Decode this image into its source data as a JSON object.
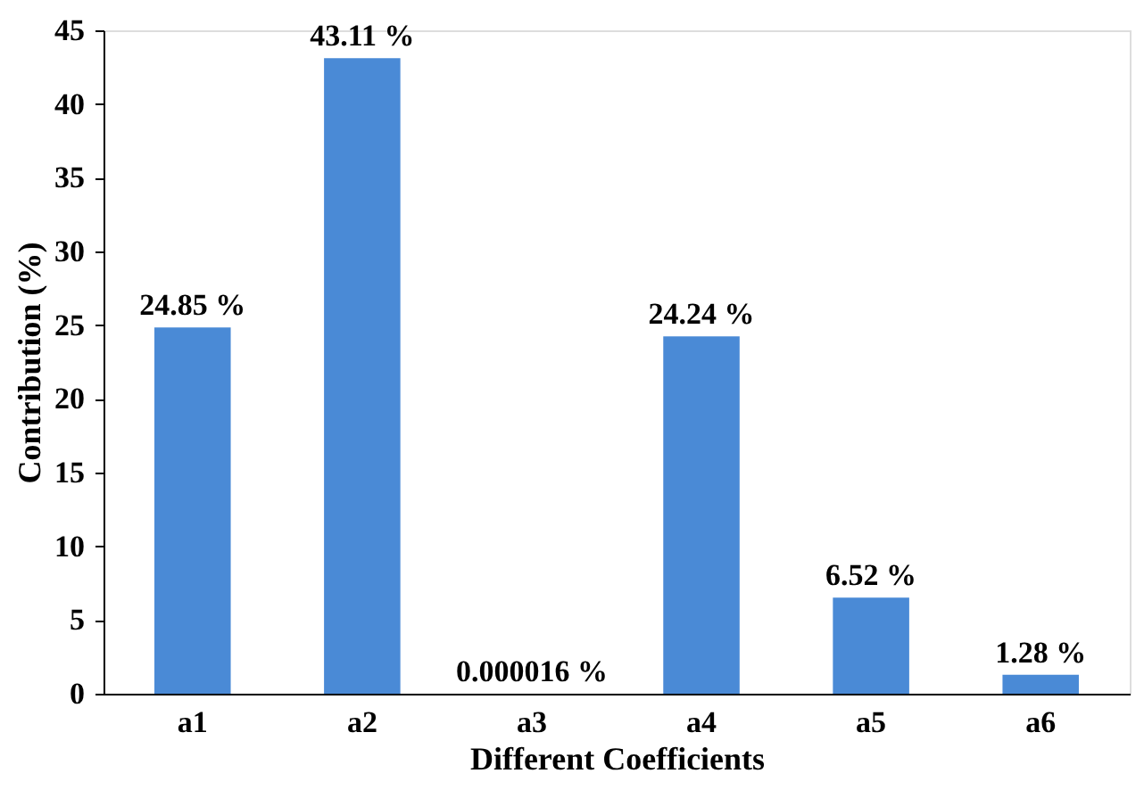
{
  "chart_data": {
    "type": "bar",
    "xlabel": "Different Coefficients",
    "ylabel": "Contribution (%)",
    "categories": [
      "a1",
      "a2",
      "a3",
      "a4",
      "a5",
      "a6"
    ],
    "values": [
      24.85,
      43.11,
      1.6e-05,
      24.24,
      6.52,
      1.28
    ],
    "value_labels": [
      "24.85 %",
      "43.11 %",
      "0.000016 %",
      "24.24 %",
      "6.52 %",
      "1.28 %"
    ],
    "color": "#4a8ad6",
    "ylim": [
      0,
      45
    ],
    "yticks": [
      0,
      5,
      10,
      15,
      20,
      25,
      30,
      35,
      40,
      45
    ],
    "grid": false
  }
}
